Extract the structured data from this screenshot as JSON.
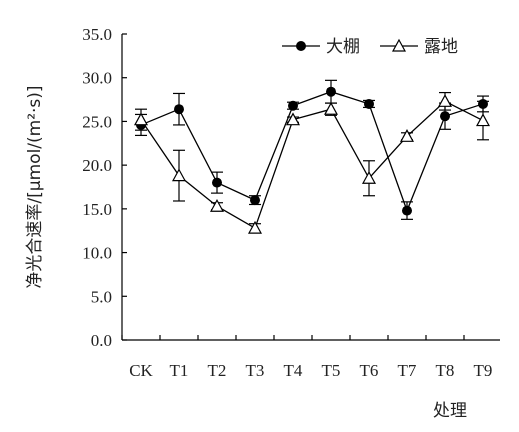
{
  "chart_data": {
    "type": "line",
    "title": "",
    "xlabel": "处理",
    "ylabel": "净光合速率/[μmol/(m²·s)]",
    "ylim": [
      0,
      35
    ],
    "yticks": [
      "0.0",
      "5.0",
      "10.0",
      "15.0",
      "20.0",
      "25.0",
      "30.0",
      "35.0"
    ],
    "categories": [
      "CK",
      "T1",
      "T2",
      "T3",
      "T4",
      "T5",
      "T6",
      "T7",
      "T8",
      "T9"
    ],
    "grid": false,
    "legend_position": "top-right",
    "series": [
      {
        "name": "大棚",
        "marker": "filled-circle",
        "values": [
          24.6,
          26.4,
          18.0,
          16.0,
          26.8,
          28.4,
          27.0,
          14.8,
          25.6,
          27.0
        ],
        "errors": [
          1.2,
          1.8,
          1.2,
          0.5,
          0.4,
          1.3,
          0.4,
          1.0,
          1.5,
          0.9
        ]
      },
      {
        "name": "露地",
        "marker": "open-triangle",
        "values": [
          25.2,
          18.8,
          15.3,
          12.8,
          25.2,
          26.4,
          18.5,
          23.3,
          27.3,
          25.1
        ],
        "errors": [
          1.2,
          2.9,
          0.4,
          0.5,
          0.3,
          0.7,
          2.0,
          0.4,
          1.0,
          2.2
        ]
      }
    ]
  }
}
